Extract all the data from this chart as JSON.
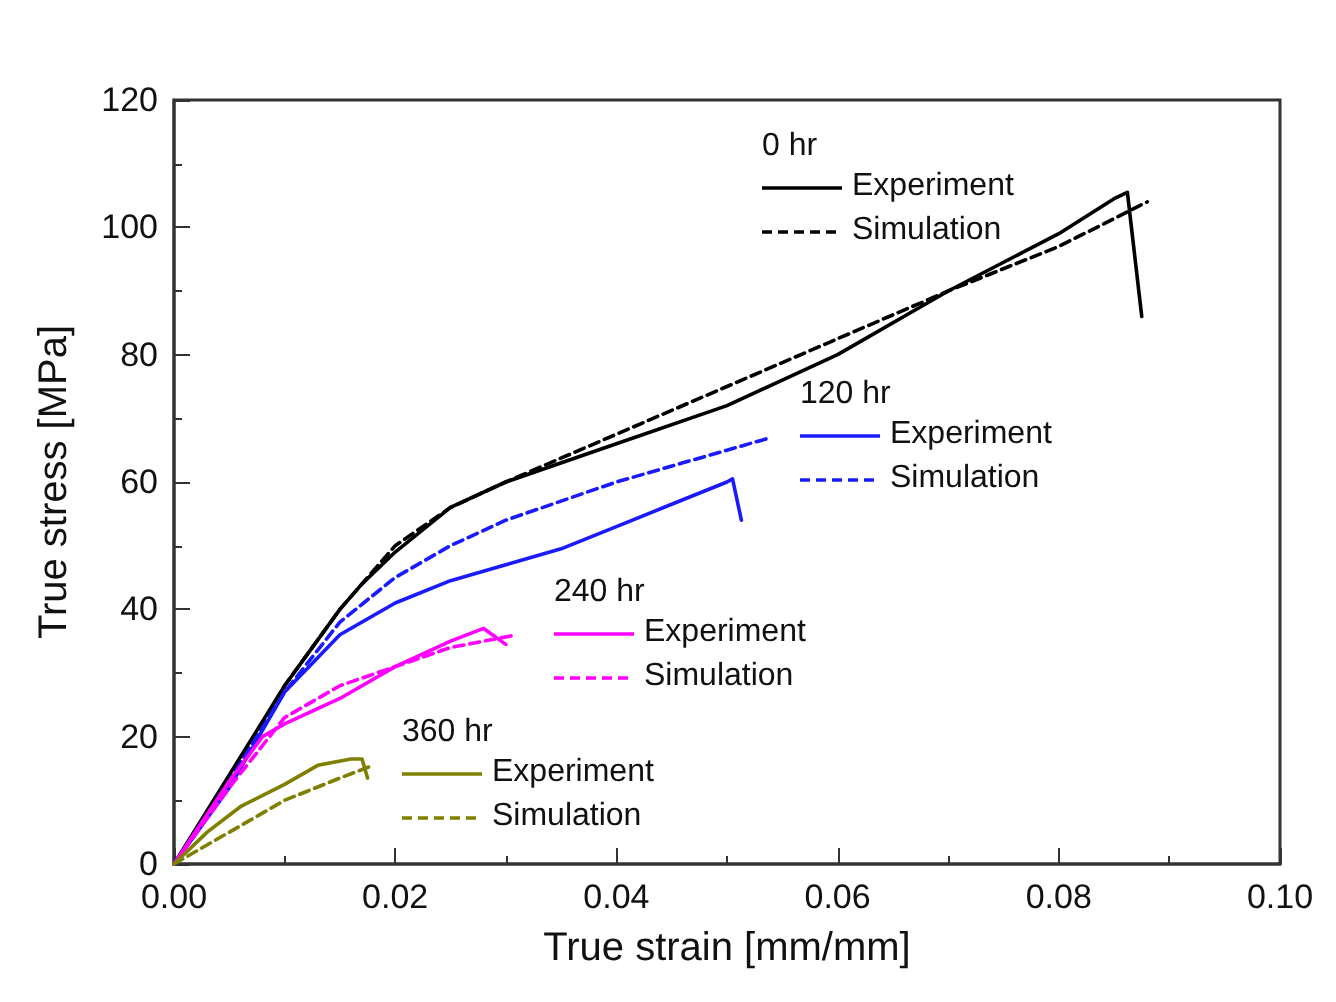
{
  "chart_data": {
    "type": "line",
    "xlabel": "True strain [mm/mm]",
    "ylabel": "True stress [MPa]",
    "xlim": [
      0,
      0.1
    ],
    "xticks": [
      {
        "value": 0,
        "label": "0.00"
      },
      {
        "value": 0.02,
        "label": "0.02"
      },
      {
        "value": 0.04,
        "label": "0.04"
      },
      {
        "value": 0.06,
        "label": "0.06"
      },
      {
        "value": 0.08,
        "label": "0.08"
      },
      {
        "value": 0.1,
        "label": "0.10"
      }
    ],
    "ylim": [
      0,
      120
    ],
    "yticks": [
      0,
      20,
      40,
      60,
      80,
      100,
      120
    ],
    "grid": false,
    "legend": "right",
    "marker": "none",
    "annotations": [
      "0 hr",
      "120 hr",
      "240 hr",
      "360 hr"
    ],
    "series": [
      {
        "name": "Experiment",
        "color": "#000000",
        "line_style": "solid",
        "x": [
          0,
          0.005,
          0.01,
          0.015,
          0.017,
          0.02,
          0.025,
          0.03,
          0.04,
          0.05,
          0.06,
          0.07,
          0.08,
          0.085,
          0.0862,
          0.0875
        ],
        "values": [
          0,
          14,
          28,
          40,
          44,
          49,
          56,
          60,
          66,
          72,
          80,
          90,
          99,
          104.5,
          105.5,
          86
        ]
      },
      {
        "name": "Simulation",
        "color": "#000000",
        "line_style": "dashed",
        "x": [
          0,
          0.005,
          0.01,
          0.015,
          0.02,
          0.025,
          0.03,
          0.04,
          0.05,
          0.06,
          0.07,
          0.08,
          0.088
        ],
        "values": [
          0,
          13,
          28,
          40,
          50,
          56,
          60,
          67.5,
          75,
          82.5,
          90,
          97,
          104
        ]
      },
      {
        "name": "Experiment",
        "color": "#1a1aff",
        "line_style": "solid",
        "x": [
          0,
          0.005,
          0.01,
          0.015,
          0.02,
          0.025,
          0.03,
          0.035,
          0.04,
          0.045,
          0.05,
          0.0505,
          0.0513
        ],
        "values": [
          0,
          12,
          27,
          36,
          41,
          44.5,
          47,
          49.5,
          53,
          56.5,
          60,
          60.5,
          54
        ]
      },
      {
        "name": "Simulation",
        "color": "#1a1aff",
        "line_style": "dashed",
        "x": [
          0,
          0.005,
          0.01,
          0.015,
          0.02,
          0.025,
          0.03,
          0.04,
          0.05,
          0.054
        ],
        "values": [
          0,
          13,
          27,
          38,
          45,
          50,
          54,
          60,
          65,
          67
        ]
      },
      {
        "name": "Experiment",
        "color": "#ff00ff",
        "line_style": "solid",
        "x": [
          0,
          0.005,
          0.008,
          0.01,
          0.015,
          0.02,
          0.025,
          0.028,
          0.03
        ],
        "values": [
          0,
          13,
          20,
          22,
          26,
          31,
          35,
          37,
          34.5
        ]
      },
      {
        "name": "Simulation",
        "color": "#ff00ff",
        "line_style": "dashed",
        "x": [
          0,
          0.005,
          0.01,
          0.015,
          0.02,
          0.025,
          0.031
        ],
        "values": [
          0,
          12,
          23,
          28,
          31,
          34,
          36
        ]
      },
      {
        "name": "Experiment",
        "color": "#808000",
        "line_style": "solid",
        "x": [
          0,
          0.003,
          0.006,
          0.01,
          0.013,
          0.016,
          0.017,
          0.0175
        ],
        "values": [
          0,
          5,
          9,
          12.5,
          15.5,
          16.5,
          16.5,
          13.5
        ]
      },
      {
        "name": "Simulation",
        "color": "#808000",
        "line_style": "dashed",
        "x": [
          0,
          0.005,
          0.01,
          0.015,
          0.018
        ],
        "values": [
          0,
          5,
          10,
          13.5,
          15.5
        ]
      }
    ]
  }
}
